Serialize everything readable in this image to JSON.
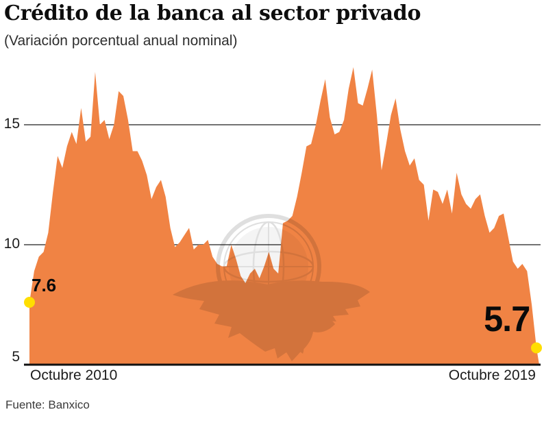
{
  "title": "Crédito de la banca al sector privado",
  "subtitle": "(Variación porcentual anual nominal)",
  "source": "Fuente: Banxico",
  "annotations": {
    "start_label": "7.6",
    "end_label": "5.7"
  },
  "x_axis": {
    "start_label": "Octubre 2010",
    "end_label": "Octubre 2019"
  },
  "y_axis": {
    "ticks": [
      5,
      10,
      15
    ]
  },
  "colors": {
    "area": "#F08344",
    "dot": "#FFDE00",
    "grid": "#444444",
    "axis": "#111111",
    "watermark": "#6b6b6b"
  },
  "chart_data": {
    "type": "area",
    "title": "Crédito de la banca al sector privado",
    "subtitle": "(Variación porcentual anual nominal)",
    "x_start_label": "Octubre 2010",
    "x_end_label": "Octubre 2019",
    "x_frequency": "monthly",
    "n_points": 109,
    "ylim": [
      5,
      17.5
    ],
    "yticks": [
      5,
      10,
      15
    ],
    "grid": "horizontal",
    "legend": "none",
    "first_value": 7.6,
    "last_value": 5.7,
    "values": [
      7.6,
      8.9,
      9.5,
      9.7,
      10.5,
      12.2,
      13.7,
      13.2,
      14.1,
      14.7,
      14.2,
      15.7,
      14.3,
      14.5,
      17.2,
      15.0,
      15.2,
      14.4,
      15.0,
      16.4,
      16.2,
      15.2,
      13.9,
      13.9,
      13.5,
      12.9,
      11.9,
      12.4,
      12.7,
      12.0,
      10.7,
      9.9,
      10.1,
      10.4,
      10.7,
      9.8,
      10.0,
      10.0,
      10.2,
      9.5,
      9.2,
      9.1,
      9.1,
      10.0,
      9.4,
      8.7,
      8.4,
      8.8,
      9.0,
      8.6,
      9.1,
      9.7,
      9.0,
      8.8,
      10.9,
      11.0,
      11.2,
      12.0,
      13.0,
      14.1,
      14.2,
      15.0,
      16.0,
      16.9,
      15.3,
      14.6,
      14.7,
      15.2,
      16.5,
      17.4,
      15.9,
      15.8,
      16.5,
      17.3,
      15.4,
      13.1,
      14.2,
      15.4,
      16.1,
      14.8,
      13.9,
      13.3,
      13.6,
      12.7,
      12.5,
      11.0,
      12.3,
      12.2,
      11.7,
      12.3,
      11.3,
      13.0,
      12.1,
      11.7,
      11.5,
      11.9,
      12.1,
      11.2,
      10.5,
      10.7,
      11.2,
      11.3,
      10.3,
      9.3,
      9.0,
      9.2,
      8.9,
      7.5,
      5.7
    ]
  }
}
